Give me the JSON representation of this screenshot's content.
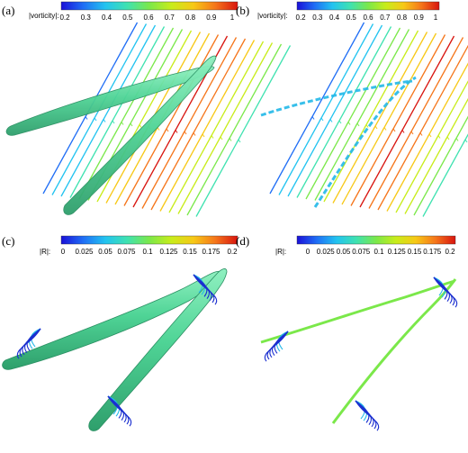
{
  "panels": [
    {
      "id": "a",
      "label": "(a)",
      "colorbar": {
        "title": "|vorticity|:",
        "ticks": [
          "0.2",
          "0.3",
          "0.4",
          "0.5",
          "0.6",
          "0.7",
          "0.8",
          "0.9",
          "1"
        ]
      }
    },
    {
      "id": "b",
      "label": "(b)",
      "colorbar": {
        "title": "|vorticity|:",
        "ticks": [
          "0.2",
          "0.3",
          "0.4",
          "0.5",
          "0.6",
          "0.7",
          "0.8",
          "0.9",
          "1"
        ]
      }
    },
    {
      "id": "c",
      "label": "(c)",
      "colorbar": {
        "title": "|R|:",
        "ticks": [
          "0",
          "0.025",
          "0.05",
          "0.075",
          "0.1",
          "0.125",
          "0.15",
          "0.175",
          "0.2"
        ]
      }
    },
    {
      "id": "d",
      "label": "(d)",
      "colorbar": {
        "title": "|R|:",
        "ticks": [
          "0",
          "0.025",
          "0.05",
          "0.075",
          "0.1",
          "0.125",
          "0.15",
          "0.175",
          "0.2"
        ]
      }
    }
  ],
  "colors": {
    "colormap": [
      "#1a10d8",
      "#1f6ef5",
      "#22c3f0",
      "#3fe2b0",
      "#7be84a",
      "#c8ec1a",
      "#f7c816",
      "#f5751a",
      "#d8140e"
    ],
    "tube_fill": "#52d89a",
    "tube_stroke": "#2a8f62",
    "streamline_blue": "#1b2fd0",
    "streamline_cyan": "#22b8e8"
  }
}
